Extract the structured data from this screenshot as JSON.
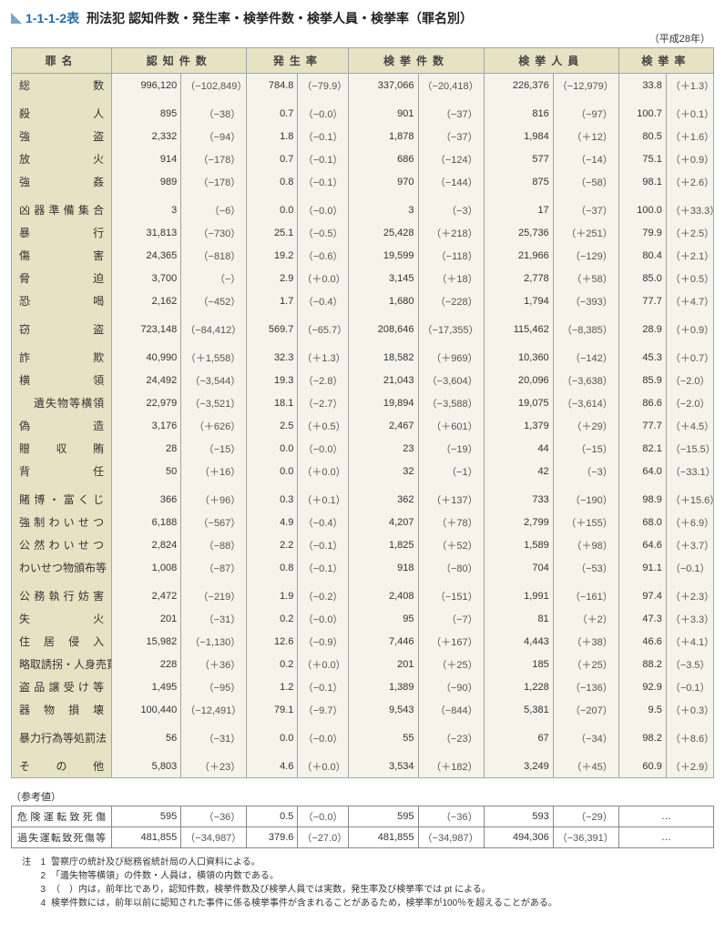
{
  "title": {
    "num": "1-1-1-2表",
    "text": "刑法犯 認知件数・発生率・検挙件数・検挙人員・検挙率（罪名別）"
  },
  "year_note": "（平成28年）",
  "columns": [
    "罪名",
    "認知件数",
    "発生率",
    "検挙件数",
    "検挙人員",
    "検挙率"
  ],
  "col_widths": [
    "110",
    "76",
    "72",
    "56",
    "56",
    "76",
    "72",
    "76",
    "72",
    "52",
    "52"
  ],
  "groups": [
    {
      "rows": [
        {
          "label": "総　　　数",
          "v1": "996,120",
          "d1": "（−102,849）",
          "v2": "784.8",
          "d2": "（−79.9）",
          "v3": "337,066",
          "d3": "（−20,418）",
          "v4": "226,376",
          "d4": "（−12,979）",
          "v5": "33.8",
          "d5": "（＋1.3）"
        }
      ]
    },
    {
      "rows": [
        {
          "label": "殺　　　人",
          "v1": "895",
          "d1": "（−38）",
          "v2": "0.7",
          "d2": "（−0.0）",
          "v3": "901",
          "d3": "（−37）",
          "v4": "816",
          "d4": "（−97）",
          "v5": "100.7",
          "d5": "（＋0.1）"
        },
        {
          "label": "強　　　盗",
          "v1": "2,332",
          "d1": "（−94）",
          "v2": "1.8",
          "d2": "（−0.1）",
          "v3": "1,878",
          "d3": "（−37）",
          "v4": "1,984",
          "d4": "（＋12）",
          "v5": "80.5",
          "d5": "（＋1.6）"
        },
        {
          "label": "放　　　火",
          "v1": "914",
          "d1": "（−178）",
          "v2": "0.7",
          "d2": "（−0.1）",
          "v3": "686",
          "d3": "（−124）",
          "v4": "577",
          "d4": "（−14）",
          "v5": "75.1",
          "d5": "（＋0.9）"
        },
        {
          "label": "強　　　姦",
          "v1": "989",
          "d1": "（−178）",
          "v2": "0.8",
          "d2": "（−0.1）",
          "v3": "970",
          "d3": "（−144）",
          "v4": "875",
          "d4": "（−58）",
          "v5": "98.1",
          "d5": "（＋2.6）"
        }
      ]
    },
    {
      "rows": [
        {
          "label": "凶器準備集合",
          "v1": "3",
          "d1": "（−6）",
          "v2": "0.0",
          "d2": "（−0.0）",
          "v3": "3",
          "d3": "（−3）",
          "v4": "17",
          "d4": "（−37）",
          "v5": "100.0",
          "d5": "（＋33.3）"
        },
        {
          "label": "暴　　　行",
          "v1": "31,813",
          "d1": "（−730）",
          "v2": "25.1",
          "d2": "（−0.5）",
          "v3": "25,428",
          "d3": "（＋218）",
          "v4": "25,736",
          "d4": "（＋251）",
          "v5": "79.9",
          "d5": "（＋2.5）"
        },
        {
          "label": "傷　　　害",
          "v1": "24,365",
          "d1": "（−818）",
          "v2": "19.2",
          "d2": "（−0.6）",
          "v3": "19,599",
          "d3": "（−118）",
          "v4": "21,966",
          "d4": "（−129）",
          "v5": "80.4",
          "d5": "（＋2.1）"
        },
        {
          "label": "脅　　　迫",
          "v1": "3,700",
          "d1": "（−）",
          "v2": "2.9",
          "d2": "（＋0.0）",
          "v3": "3,145",
          "d3": "（＋18）",
          "v4": "2,778",
          "d4": "（＋58）",
          "v5": "85.0",
          "d5": "（＋0.5）"
        },
        {
          "label": "恐　　　喝",
          "v1": "2,162",
          "d1": "（−452）",
          "v2": "1.7",
          "d2": "（−0.4）",
          "v3": "1,680",
          "d3": "（−228）",
          "v4": "1,794",
          "d4": "（−393）",
          "v5": "77.7",
          "d5": "（＋4.7）"
        }
      ]
    },
    {
      "rows": [
        {
          "label": "窃　　　盗",
          "v1": "723,148",
          "d1": "（−84,412）",
          "v2": "569.7",
          "d2": "（−65.7）",
          "v3": "208,646",
          "d3": "（−17,355）",
          "v4": "115,462",
          "d4": "（−8,385）",
          "v5": "28.9",
          "d5": "（＋0.9）"
        }
      ]
    },
    {
      "rows": [
        {
          "label": "詐　　　欺",
          "v1": "40,990",
          "d1": "（＋1,558）",
          "v2": "32.3",
          "d2": "（＋1.3）",
          "v3": "18,582",
          "d3": "（＋969）",
          "v4": "10,360",
          "d4": "（−142）",
          "v5": "45.3",
          "d5": "（＋0.7）"
        },
        {
          "label": "横　　　領",
          "v1": "24,492",
          "d1": "（−3,544）",
          "v2": "19.3",
          "d2": "（−2.8）",
          "v3": "21,043",
          "d3": "（−3,604）",
          "v4": "20,096",
          "d4": "（−3,638）",
          "v5": "85.9",
          "d5": "（−2.0）"
        },
        {
          "label": "遺失物等横領",
          "indent": true,
          "v1": "22,979",
          "d1": "（−3,521）",
          "v2": "18.1",
          "d2": "（−2.7）",
          "v3": "19,894",
          "d3": "（−3,588）",
          "v4": "19,075",
          "d4": "（−3,614）",
          "v5": "86.6",
          "d5": "（−2.0）"
        },
        {
          "label": "偽　　　造",
          "v1": "3,176",
          "d1": "（＋626）",
          "v2": "2.5",
          "d2": "（＋0.5）",
          "v3": "2,467",
          "d3": "（＋601）",
          "v4": "1,379",
          "d4": "（＋29）",
          "v5": "77.7",
          "d5": "（＋4.5）"
        },
        {
          "label": "贈　収　賄",
          "v1": "28",
          "d1": "（−15）",
          "v2": "0.0",
          "d2": "（−0.0）",
          "v3": "23",
          "d3": "（−19）",
          "v4": "44",
          "d4": "（−15）",
          "v5": "82.1",
          "d5": "（−15.5）"
        },
        {
          "label": "背　　　任",
          "v1": "50",
          "d1": "（＋16）",
          "v2": "0.0",
          "d2": "（＋0.0）",
          "v3": "32",
          "d3": "（−1）",
          "v4": "42",
          "d4": "（−3）",
          "v5": "64.0",
          "d5": "（−33.1）"
        }
      ]
    },
    {
      "rows": [
        {
          "label": "賭博・富くじ",
          "v1": "366",
          "d1": "（＋96）",
          "v2": "0.3",
          "d2": "（＋0.1）",
          "v3": "362",
          "d3": "（＋137）",
          "v4": "733",
          "d4": "（−190）",
          "v5": "98.9",
          "d5": "（＋15.6）"
        },
        {
          "label": "強制わいせつ",
          "v1": "6,188",
          "d1": "（−567）",
          "v2": "4.9",
          "d2": "（−0.4）",
          "v3": "4,207",
          "d3": "（＋78）",
          "v4": "2,799",
          "d4": "（＋155）",
          "v5": "68.0",
          "d5": "（＋6.9）"
        },
        {
          "label": "公然わいせつ",
          "v1": "2,824",
          "d1": "（−88）",
          "v2": "2.2",
          "d2": "（−0.1）",
          "v3": "1,825",
          "d3": "（＋52）",
          "v4": "1,589",
          "d4": "（＋98）",
          "v5": "64.6",
          "d5": "（＋3.7）"
        },
        {
          "label": "わいせつ物頒布等",
          "v1": "1,008",
          "d1": "（−87）",
          "v2": "0.8",
          "d2": "（−0.1）",
          "v3": "918",
          "d3": "（−80）",
          "v4": "704",
          "d4": "（−53）",
          "v5": "91.1",
          "d5": "（−0.1）"
        }
      ]
    },
    {
      "rows": [
        {
          "label": "公務執行妨害",
          "v1": "2,472",
          "d1": "（−219）",
          "v2": "1.9",
          "d2": "（−0.2）",
          "v3": "2,408",
          "d3": "（−151）",
          "v4": "1,991",
          "d4": "（−161）",
          "v5": "97.4",
          "d5": "（＋2.3）"
        },
        {
          "label": "失　　　火",
          "v1": "201",
          "d1": "（−31）",
          "v2": "0.2",
          "d2": "（−0.0）",
          "v3": "95",
          "d3": "（−7）",
          "v4": "81",
          "d4": "（＋2）",
          "v5": "47.3",
          "d5": "（＋3.3）"
        },
        {
          "label": "住 居 侵 入",
          "v1": "15,982",
          "d1": "（−1,130）",
          "v2": "12.6",
          "d2": "（−0.9）",
          "v3": "7,446",
          "d3": "（＋167）",
          "v4": "4,443",
          "d4": "（＋38）",
          "v5": "46.6",
          "d5": "（＋4.1）"
        },
        {
          "label": "略取誘拐・人身売買",
          "v1": "228",
          "d1": "（＋36）",
          "v2": "0.2",
          "d2": "（＋0.0）",
          "v3": "201",
          "d3": "（＋25）",
          "v4": "185",
          "d4": "（＋25）",
          "v5": "88.2",
          "d5": "（−3.5）"
        },
        {
          "label": "盗品譲受け等",
          "v1": "1,495",
          "d1": "（−95）",
          "v2": "1.2",
          "d2": "（−0.1）",
          "v3": "1,389",
          "d3": "（−90）",
          "v4": "1,228",
          "d4": "（−136）",
          "v5": "92.9",
          "d5": "（−0.1）"
        },
        {
          "label": "器 物 損 壊",
          "v1": "100,440",
          "d1": "（−12,491）",
          "v2": "79.1",
          "d2": "（−9.7）",
          "v3": "9,543",
          "d3": "（−844）",
          "v4": "5,381",
          "d4": "（−207）",
          "v5": "9.5",
          "d5": "（＋0.3）"
        }
      ]
    },
    {
      "rows": [
        {
          "label": "暴力行為等処罰法",
          "v1": "56",
          "d1": "（−31）",
          "v2": "0.0",
          "d2": "（−0.0）",
          "v3": "55",
          "d3": "（−23）",
          "v4": "67",
          "d4": "（−34）",
          "v5": "98.2",
          "d5": "（＋8.6）"
        }
      ]
    },
    {
      "rows": [
        {
          "label": "そ　の　他",
          "v1": "5,803",
          "d1": "（＋23）",
          "v2": "4.6",
          "d2": "（＋0.0）",
          "v3": "3,534",
          "d3": "（＋182）",
          "v4": "3,249",
          "d4": "（＋45）",
          "v5": "60.9",
          "d5": "（＋2.9）"
        }
      ]
    }
  ],
  "ref_title": "（参考値）",
  "ref_rows": [
    {
      "label": "危険運転致死傷",
      "v1": "595",
      "d1": "（−36）",
      "v2": "0.5",
      "d2": "（−0.0）",
      "v3": "595",
      "d3": "（−36）",
      "v4": "593",
      "d4": "（−29）",
      "v5": "…"
    },
    {
      "label": "過失運転致死傷等",
      "v1": "481,855",
      "d1": "（−34,987）",
      "v2": "379.6",
      "d2": "（−27.0）",
      "v3": "481,855",
      "d3": "（−34,987）",
      "v4": "494,306",
      "d4": "（−36,391）",
      "v5": "…"
    }
  ],
  "notes_lead": "注",
  "notes": [
    "警察庁の統計及び総務省統計局の人口資料による。",
    "「遺失物等横領」の件数・人員は，横領の内数である。",
    "（　）内は，前年比であり，認知件数，検挙件数及び検挙人員では実数，発生率及び検挙率では pt による。",
    "検挙件数には，前年以前に認知された事件に係る検挙事件が含まれることがあるため，検挙率が100％を超えることがある。"
  ]
}
